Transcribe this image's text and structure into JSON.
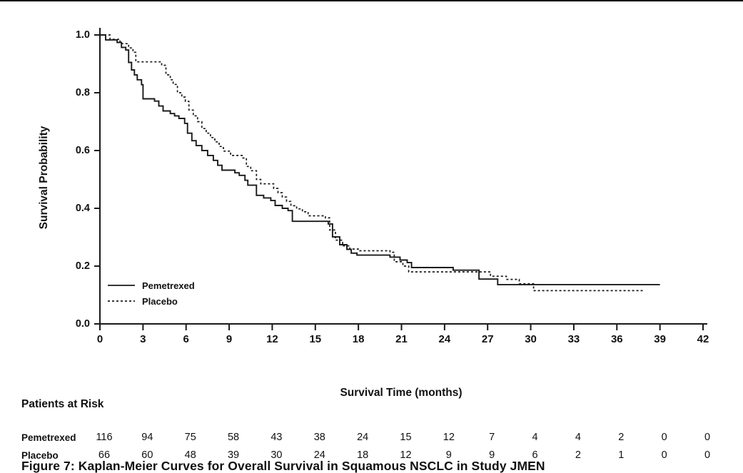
{
  "figure": {
    "caption": "Figure 7: Kaplan-Meier Curves for Overall Survival in Squamous NSCLC in Study JMEN"
  },
  "chart_data": {
    "type": "line",
    "subtype": "kaplan-meier-step",
    "title": "",
    "xlabel": "Survival Time (months)",
    "ylabel": "Survival Probability",
    "xlim": [
      0,
      42
    ],
    "ylim": [
      0.0,
      1.0
    ],
    "x_ticks": [
      0,
      3,
      6,
      9,
      12,
      15,
      18,
      21,
      24,
      27,
      30,
      33,
      36,
      39,
      42
    ],
    "y_ticks": [
      0.0,
      0.2,
      0.4,
      0.6,
      0.8,
      1.0
    ],
    "grid": false,
    "line_color": "#1a1a1a",
    "legend": {
      "position": "inside-lower-left",
      "entries": [
        {
          "label": "Pemetrexed",
          "line": "solid"
        },
        {
          "label": "Placebo",
          "line": "dotted"
        }
      ]
    },
    "series": [
      {
        "name": "Pemetrexed",
        "line": "solid",
        "color": "#1a1a1a",
        "steps": [
          [
            0,
            1.0
          ],
          [
            0.4,
            0.983
          ],
          [
            1.2,
            0.974
          ],
          [
            1.5,
            0.957
          ],
          [
            1.8,
            0.948
          ],
          [
            2.0,
            0.905
          ],
          [
            2.2,
            0.879
          ],
          [
            2.4,
            0.862
          ],
          [
            2.6,
            0.845
          ],
          [
            2.9,
            0.828
          ],
          [
            3.0,
            0.779
          ],
          [
            3.8,
            0.771
          ],
          [
            4.1,
            0.754
          ],
          [
            4.4,
            0.737
          ],
          [
            4.9,
            0.728
          ],
          [
            5.2,
            0.72
          ],
          [
            5.5,
            0.711
          ],
          [
            5.9,
            0.694
          ],
          [
            6.1,
            0.66
          ],
          [
            6.4,
            0.634
          ],
          [
            6.7,
            0.617
          ],
          [
            7.1,
            0.6
          ],
          [
            7.5,
            0.583
          ],
          [
            7.9,
            0.566
          ],
          [
            8.2,
            0.549
          ],
          [
            8.5,
            0.532
          ],
          [
            9.4,
            0.523
          ],
          [
            9.7,
            0.514
          ],
          [
            10.1,
            0.497
          ],
          [
            10.3,
            0.48
          ],
          [
            10.9,
            0.445
          ],
          [
            11.4,
            0.436
          ],
          [
            11.9,
            0.427
          ],
          [
            12.2,
            0.41
          ],
          [
            12.7,
            0.4
          ],
          [
            13.1,
            0.392
          ],
          [
            13.4,
            0.355
          ],
          [
            15.9,
            0.346
          ],
          [
            16.2,
            0.301
          ],
          [
            16.7,
            0.274
          ],
          [
            17.2,
            0.258
          ],
          [
            17.5,
            0.245
          ],
          [
            17.9,
            0.238
          ],
          [
            20.2,
            0.231
          ],
          [
            20.9,
            0.221
          ],
          [
            21.4,
            0.212
          ],
          [
            21.7,
            0.195
          ],
          [
            24.6,
            0.186
          ],
          [
            26.4,
            0.155
          ],
          [
            27.7,
            0.136
          ],
          [
            39,
            0.136
          ]
        ]
      },
      {
        "name": "Placebo",
        "line": "dotted",
        "color": "#1a1a1a",
        "steps": [
          [
            0,
            1.0
          ],
          [
            0.7,
            0.985
          ],
          [
            1.4,
            0.97
          ],
          [
            2.0,
            0.955
          ],
          [
            2.3,
            0.94
          ],
          [
            2.5,
            0.907
          ],
          [
            4.3,
            0.895
          ],
          [
            4.6,
            0.862
          ],
          [
            4.9,
            0.845
          ],
          [
            5.1,
            0.829
          ],
          [
            5.4,
            0.8
          ],
          [
            5.7,
            0.785
          ],
          [
            5.95,
            0.77
          ],
          [
            6.2,
            0.74
          ],
          [
            6.5,
            0.72
          ],
          [
            6.8,
            0.7
          ],
          [
            7.1,
            0.676
          ],
          [
            7.4,
            0.66
          ],
          [
            7.7,
            0.645
          ],
          [
            8.0,
            0.63
          ],
          [
            8.3,
            0.614
          ],
          [
            8.6,
            0.598
          ],
          [
            9.1,
            0.583
          ],
          [
            9.9,
            0.574
          ],
          [
            10.2,
            0.545
          ],
          [
            10.5,
            0.53
          ],
          [
            10.9,
            0.5
          ],
          [
            11.2,
            0.485
          ],
          [
            12.1,
            0.469
          ],
          [
            12.4,
            0.454
          ],
          [
            12.7,
            0.439
          ],
          [
            13.0,
            0.424
          ],
          [
            13.3,
            0.409
          ],
          [
            13.7,
            0.398
          ],
          [
            14.1,
            0.388
          ],
          [
            14.5,
            0.374
          ],
          [
            15.7,
            0.367
          ],
          [
            16.0,
            0.325
          ],
          [
            16.4,
            0.29
          ],
          [
            16.9,
            0.27
          ],
          [
            17.4,
            0.259
          ],
          [
            18.1,
            0.253
          ],
          [
            20.2,
            0.248
          ],
          [
            20.5,
            0.215
          ],
          [
            21.1,
            0.2
          ],
          [
            21.5,
            0.18
          ],
          [
            27.2,
            0.165
          ],
          [
            28.3,
            0.154
          ],
          [
            29.2,
            0.139
          ],
          [
            30.2,
            0.115
          ],
          [
            37.8,
            0.115
          ]
        ]
      }
    ]
  },
  "risk_table": {
    "title": "Patients at Risk",
    "time_points": [
      0,
      3,
      6,
      9,
      12,
      15,
      18,
      21,
      24,
      27,
      30,
      33,
      36,
      39,
      42
    ],
    "rows": [
      {
        "label": "Pemetrexed",
        "counts": [
          116,
          94,
          75,
          58,
          43,
          38,
          24,
          15,
          12,
          7,
          4,
          4,
          2,
          0,
          0
        ]
      },
      {
        "label": "Placebo",
        "counts": [
          66,
          60,
          48,
          39,
          30,
          24,
          18,
          12,
          9,
          9,
          6,
          2,
          1,
          0,
          0
        ]
      }
    ]
  }
}
